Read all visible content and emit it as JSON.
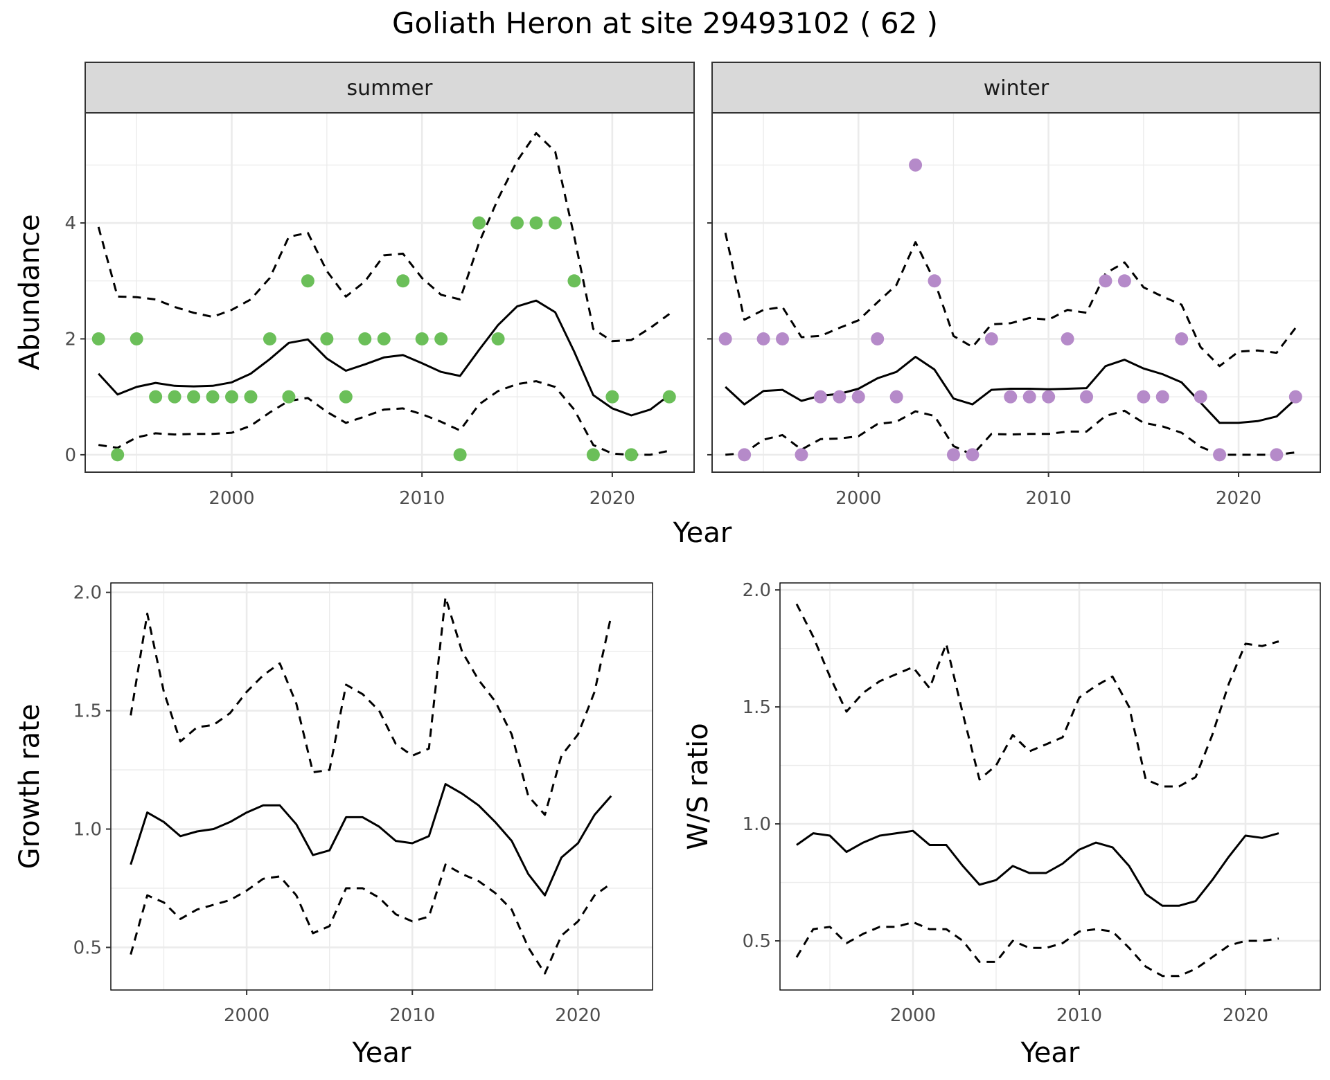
{
  "title": "Goliath Heron at site 29493102 ( 62 )",
  "colors": {
    "summer_points": "#6bbf59",
    "winter_points": "#b58ac9",
    "line": "#000000",
    "strip_bg": "#d9d9d9",
    "grid": "#ebebeb"
  },
  "chart_data": [
    {
      "type": "scatter",
      "facet": "summer",
      "ylabel": "Abundance",
      "xlabel": "Year",
      "xlim": [
        1992.3,
        2024.3
      ],
      "ylim": [
        -0.3,
        5.9
      ],
      "xticks": [
        2000,
        2010,
        2020
      ],
      "yticks": [
        0,
        2,
        4
      ],
      "grid": true,
      "points": {
        "x": [
          1993,
          1994,
          1995,
          1996,
          1997,
          1998,
          1999,
          2000,
          2001,
          2002,
          2003,
          2004,
          2005,
          2006,
          2007,
          2008,
          2009,
          2010,
          2011,
          2012,
          2013,
          2014,
          2015,
          2016,
          2017,
          2018,
          2019,
          2020,
          2021,
          2022,
          2023
        ],
        "y": [
          2,
          0,
          2,
          1,
          1,
          1,
          1,
          1,
          1,
          2,
          1,
          3,
          2,
          1,
          2,
          2,
          3,
          2,
          2,
          0,
          4,
          2,
          4,
          4,
          4,
          3,
          0,
          1,
          0,
          null,
          1
        ]
      },
      "series": [
        {
          "style": "solid",
          "x": [
            1993,
            1994,
            1995,
            1996,
            1997,
            1998,
            1999,
            2000,
            2001,
            2002,
            2003,
            2004,
            2005,
            2006,
            2007,
            2008,
            2009,
            2010,
            2011,
            2012,
            2013,
            2014,
            2015,
            2016,
            2017,
            2018,
            2019,
            2020,
            2021,
            2022,
            2023
          ],
          "y": [
            1.4,
            1.04,
            1.17,
            1.24,
            1.19,
            1.18,
            1.19,
            1.25,
            1.4,
            1.65,
            1.93,
            1.99,
            1.66,
            1.45,
            1.56,
            1.68,
            1.72,
            1.58,
            1.43,
            1.36,
            1.81,
            2.24,
            2.56,
            2.66,
            2.46,
            1.78,
            1.03,
            0.8,
            0.68,
            0.78,
            1.03
          ]
        },
        {
          "style": "dashed",
          "x": [
            1993,
            1994,
            1995,
            1996,
            1997,
            1998,
            1999,
            2000,
            2001,
            2002,
            2003,
            2004,
            2005,
            2006,
            2007,
            2008,
            2009,
            2010,
            2011,
            2012,
            2013,
            2014,
            2015,
            2016,
            2017,
            2018,
            2019,
            2020,
            2021,
            2022,
            2023
          ],
          "y": [
            3.93,
            2.73,
            2.72,
            2.68,
            2.55,
            2.45,
            2.38,
            2.5,
            2.68,
            3.05,
            3.76,
            3.83,
            3.17,
            2.73,
            2.99,
            3.44,
            3.47,
            3.05,
            2.76,
            2.68,
            3.66,
            4.42,
            5.07,
            5.55,
            5.23,
            3.77,
            2.17,
            1.96,
            1.98,
            2.19,
            2.43
          ]
        },
        {
          "style": "dashed",
          "x": [
            1993,
            1994,
            1995,
            1996,
            1997,
            1998,
            1999,
            2000,
            2001,
            2002,
            2003,
            2004,
            2005,
            2006,
            2007,
            2008,
            2009,
            2010,
            2011,
            2012,
            2013,
            2014,
            2015,
            2016,
            2017,
            2018,
            2019,
            2020,
            2021,
            2022,
            2023
          ],
          "y": [
            0.17,
            0.12,
            0.3,
            0.37,
            0.35,
            0.36,
            0.36,
            0.38,
            0.5,
            0.73,
            0.93,
            0.98,
            0.74,
            0.55,
            0.66,
            0.78,
            0.8,
            0.7,
            0.57,
            0.42,
            0.87,
            1.1,
            1.22,
            1.27,
            1.17,
            0.78,
            0.17,
            0.02,
            0.0,
            0.0,
            0.07
          ]
        }
      ]
    },
    {
      "type": "scatter",
      "facet": "winter",
      "xlabel": "Year",
      "xlim": [
        1992.3,
        2024.3
      ],
      "ylim": [
        -0.3,
        5.9
      ],
      "xticks": [
        2000,
        2010,
        2020
      ],
      "grid": true,
      "points": {
        "x": [
          1993,
          1994,
          1995,
          1996,
          1997,
          1998,
          1999,
          2000,
          2001,
          2002,
          2003,
          2004,
          2005,
          2006,
          2007,
          2008,
          2009,
          2010,
          2011,
          2012,
          2013,
          2014,
          2015,
          2016,
          2017,
          2018,
          2019,
          2020,
          2021,
          2022,
          2023
        ],
        "y": [
          2,
          0,
          2,
          2,
          0,
          1,
          1,
          1,
          2,
          1,
          5,
          3,
          0,
          0,
          2,
          1,
          1,
          1,
          2,
          1,
          3,
          3,
          1,
          1,
          2,
          1,
          0,
          null,
          null,
          0,
          1
        ]
      },
      "series": [
        {
          "style": "solid",
          "x": [
            1993,
            1994,
            1995,
            1996,
            1997,
            1998,
            1999,
            2000,
            2001,
            2002,
            2003,
            2004,
            2005,
            2006,
            2007,
            2008,
            2009,
            2010,
            2011,
            2012,
            2013,
            2014,
            2015,
            2016,
            2017,
            2018,
            2019,
            2020,
            2021,
            2022,
            2023
          ],
          "y": [
            1.17,
            0.87,
            1.1,
            1.12,
            0.93,
            1.02,
            1.05,
            1.14,
            1.32,
            1.43,
            1.69,
            1.47,
            0.97,
            0.87,
            1.12,
            1.14,
            1.14,
            1.13,
            1.14,
            1.15,
            1.53,
            1.64,
            1.49,
            1.39,
            1.25,
            0.9,
            0.55,
            0.55,
            0.58,
            0.66,
            0.96
          ]
        },
        {
          "style": "dashed",
          "x": [
            1993,
            1994,
            1995,
            1996,
            1997,
            1998,
            1999,
            2000,
            2001,
            2002,
            2003,
            2004,
            2005,
            2006,
            2007,
            2008,
            2009,
            2010,
            2011,
            2012,
            2013,
            2014,
            2015,
            2016,
            2017,
            2018,
            2019,
            2020,
            2021,
            2022,
            2023
          ],
          "y": [
            3.83,
            2.33,
            2.5,
            2.55,
            2.03,
            2.05,
            2.19,
            2.32,
            2.63,
            2.93,
            3.67,
            3.0,
            2.05,
            1.86,
            2.25,
            2.27,
            2.36,
            2.33,
            2.5,
            2.45,
            3.13,
            3.32,
            2.89,
            2.73,
            2.59,
            1.86,
            1.53,
            1.78,
            1.8,
            1.76,
            2.19
          ]
        },
        {
          "style": "dashed",
          "x": [
            1993,
            1994,
            1995,
            1996,
            1997,
            1998,
            1999,
            2000,
            2001,
            2002,
            2003,
            2004,
            2005,
            2006,
            2007,
            2008,
            2009,
            2010,
            2011,
            2012,
            2013,
            2014,
            2015,
            2016,
            2017,
            2018,
            2019,
            2020,
            2021,
            2022,
            2023
          ],
          "y": [
            0.0,
            0.03,
            0.26,
            0.34,
            0.09,
            0.27,
            0.28,
            0.32,
            0.53,
            0.57,
            0.75,
            0.67,
            0.15,
            0.0,
            0.36,
            0.35,
            0.36,
            0.36,
            0.4,
            0.4,
            0.67,
            0.76,
            0.55,
            0.49,
            0.38,
            0.14,
            0.0,
            0.0,
            0.0,
            0.0,
            0.04
          ]
        }
      ]
    },
    {
      "type": "line",
      "ylabel": "Growth rate",
      "xlabel": "Year",
      "xlim": [
        1991.8,
        2024.5
      ],
      "ylim": [
        0.32,
        2.04
      ],
      "xticks": [
        2000,
        2010,
        2020
      ],
      "yticks": [
        0.5,
        1.0,
        1.5,
        2.0
      ],
      "ytick_labels": [
        "0.5",
        "1.0",
        "1.5",
        "2.0"
      ],
      "grid": true,
      "series": [
        {
          "style": "solid",
          "x": [
            1993,
            1994,
            1995,
            1996,
            1997,
            1998,
            1999,
            2000,
            2001,
            2002,
            2003,
            2004,
            2005,
            2006,
            2007,
            2008,
            2009,
            2010,
            2011,
            2012,
            2013,
            2014,
            2015,
            2016,
            2017,
            2018,
            2019,
            2020,
            2021,
            2022
          ],
          "y": [
            0.85,
            1.07,
            1.03,
            0.97,
            0.99,
            1.0,
            1.03,
            1.07,
            1.1,
            1.1,
            1.02,
            0.89,
            0.91,
            1.05,
            1.05,
            1.01,
            0.95,
            0.94,
            0.97,
            1.19,
            1.15,
            1.1,
            1.03,
            0.95,
            0.81,
            0.72,
            0.88,
            0.94,
            1.06,
            1.14
          ]
        },
        {
          "style": "dashed",
          "x": [
            1993,
            1994,
            1995,
            1996,
            1997,
            1998,
            1999,
            2000,
            2001,
            2002,
            2003,
            2004,
            2005,
            2006,
            2007,
            2008,
            2009,
            2010,
            2011,
            2012,
            2013,
            2014,
            2015,
            2016,
            2017,
            2018,
            2019,
            2020,
            2021,
            2022
          ],
          "y": [
            1.48,
            1.91,
            1.58,
            1.37,
            1.43,
            1.44,
            1.49,
            1.58,
            1.65,
            1.7,
            1.53,
            1.24,
            1.25,
            1.61,
            1.57,
            1.5,
            1.36,
            1.31,
            1.34,
            1.98,
            1.75,
            1.63,
            1.54,
            1.4,
            1.14,
            1.06,
            1.31,
            1.4,
            1.58,
            1.9
          ]
        },
        {
          "style": "dashed",
          "x": [
            1993,
            1994,
            1995,
            1996,
            1997,
            1998,
            1999,
            2000,
            2001,
            2002,
            2003,
            2004,
            2005,
            2006,
            2007,
            2008,
            2009,
            2010,
            2011,
            2012,
            2013,
            2014,
            2015,
            2016,
            2017,
            2018,
            2019,
            2020,
            2021,
            2022
          ],
          "y": [
            0.47,
            0.72,
            0.69,
            0.62,
            0.66,
            0.68,
            0.7,
            0.74,
            0.79,
            0.8,
            0.72,
            0.56,
            0.59,
            0.75,
            0.75,
            0.71,
            0.64,
            0.61,
            0.63,
            0.85,
            0.81,
            0.78,
            0.73,
            0.66,
            0.5,
            0.39,
            0.55,
            0.61,
            0.72,
            0.77
          ]
        }
      ]
    },
    {
      "type": "line",
      "ylabel": "W/S ratio",
      "xlabel": "Year",
      "xlim": [
        1992.0,
        2024.5
      ],
      "ylim": [
        0.29,
        2.03
      ],
      "xticks": [
        2000,
        2010,
        2020
      ],
      "yticks": [
        0.5,
        1.0,
        1.5,
        2.0
      ],
      "ytick_labels": [
        "0.5",
        "1.0",
        "1.5",
        "2.0"
      ],
      "grid": true,
      "series": [
        {
          "style": "solid",
          "x": [
            1993,
            1994,
            1995,
            1996,
            1997,
            1998,
            1999,
            2000,
            2001,
            2002,
            2003,
            2004,
            2005,
            2006,
            2007,
            2008,
            2009,
            2010,
            2011,
            2012,
            2013,
            2014,
            2015,
            2016,
            2017,
            2018,
            2019,
            2020,
            2021,
            2022
          ],
          "y": [
            0.91,
            0.96,
            0.95,
            0.88,
            0.92,
            0.95,
            0.96,
            0.97,
            0.91,
            0.91,
            0.82,
            0.74,
            0.76,
            0.82,
            0.79,
            0.79,
            0.83,
            0.89,
            0.92,
            0.9,
            0.82,
            0.7,
            0.65,
            0.65,
            0.67,
            0.76,
            0.86,
            0.95,
            0.94,
            0.96
          ]
        },
        {
          "style": "dashed",
          "x": [
            1993,
            1994,
            1995,
            1996,
            1997,
            1998,
            1999,
            2000,
            2001,
            2002,
            2003,
            2004,
            2005,
            2006,
            2007,
            2008,
            2009,
            2010,
            2011,
            2012,
            2013,
            2014,
            2015,
            2016,
            2017,
            2018,
            2019,
            2020,
            2021,
            2022
          ],
          "y": [
            1.94,
            1.8,
            1.63,
            1.48,
            1.56,
            1.61,
            1.64,
            1.67,
            1.58,
            1.77,
            1.47,
            1.19,
            1.25,
            1.38,
            1.31,
            1.34,
            1.37,
            1.54,
            1.59,
            1.63,
            1.5,
            1.19,
            1.16,
            1.16,
            1.2,
            1.38,
            1.6,
            1.77,
            1.76,
            1.78
          ]
        },
        {
          "style": "dashed",
          "x": [
            1993,
            1994,
            1995,
            1996,
            1997,
            1998,
            1999,
            2000,
            2001,
            2002,
            2003,
            2004,
            2005,
            2006,
            2007,
            2008,
            2009,
            2010,
            2011,
            2012,
            2013,
            2014,
            2015,
            2016,
            2017,
            2018,
            2019,
            2020,
            2021,
            2022
          ],
          "y": [
            0.43,
            0.55,
            0.56,
            0.49,
            0.53,
            0.56,
            0.56,
            0.58,
            0.55,
            0.55,
            0.5,
            0.41,
            0.41,
            0.5,
            0.47,
            0.47,
            0.49,
            0.54,
            0.55,
            0.54,
            0.47,
            0.39,
            0.35,
            0.35,
            0.38,
            0.43,
            0.48,
            0.5,
            0.5,
            0.51
          ]
        }
      ]
    }
  ]
}
